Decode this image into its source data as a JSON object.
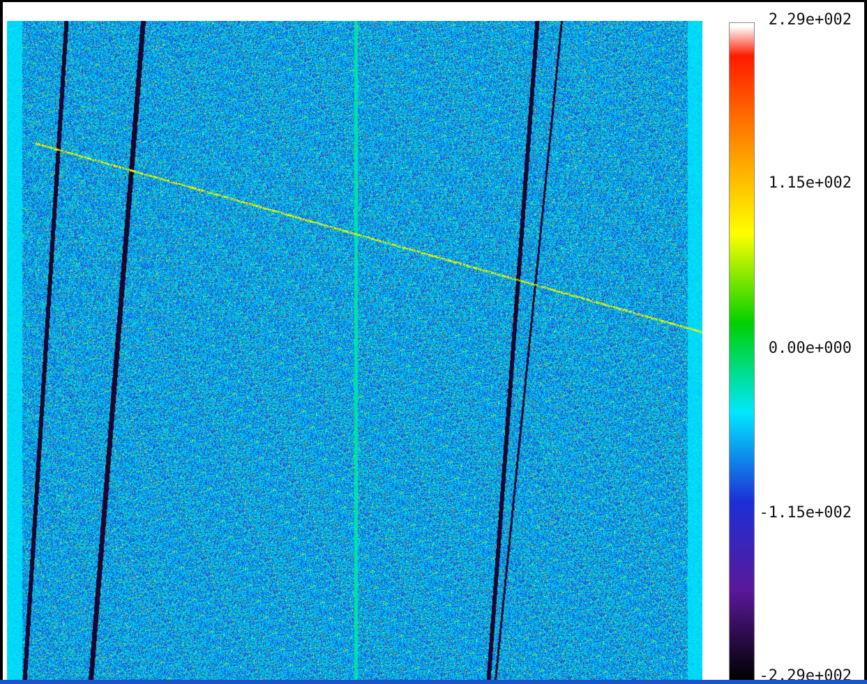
{
  "chart_data": {
    "type": "heatmap",
    "title": "",
    "xlabel": "",
    "ylabel": "",
    "colormap": [
      "#000000",
      "#5a189a",
      "#1c2fd6",
      "#00e8ff",
      "#00d000",
      "#ffff00",
      "#ff9000",
      "#ff1a00"
    ],
    "colorbar": {
      "min": -229,
      "max": 229,
      "ticks": [
        {
          "value": 229,
          "label": "2.29e+002"
        },
        {
          "value": 115,
          "label": "1.15e+002"
        },
        {
          "value": 0,
          "label": "0.00e+000"
        },
        {
          "value": -115,
          "label": "-1.15e+002"
        },
        {
          "value": -229,
          "label": "-2.29e+002"
        }
      ]
    },
    "features": {
      "dark_streaks": 4,
      "bright_vertical_line": 1,
      "bright_diagonal_line": 1,
      "edge_bands_color": "#3fd3d6"
    }
  }
}
